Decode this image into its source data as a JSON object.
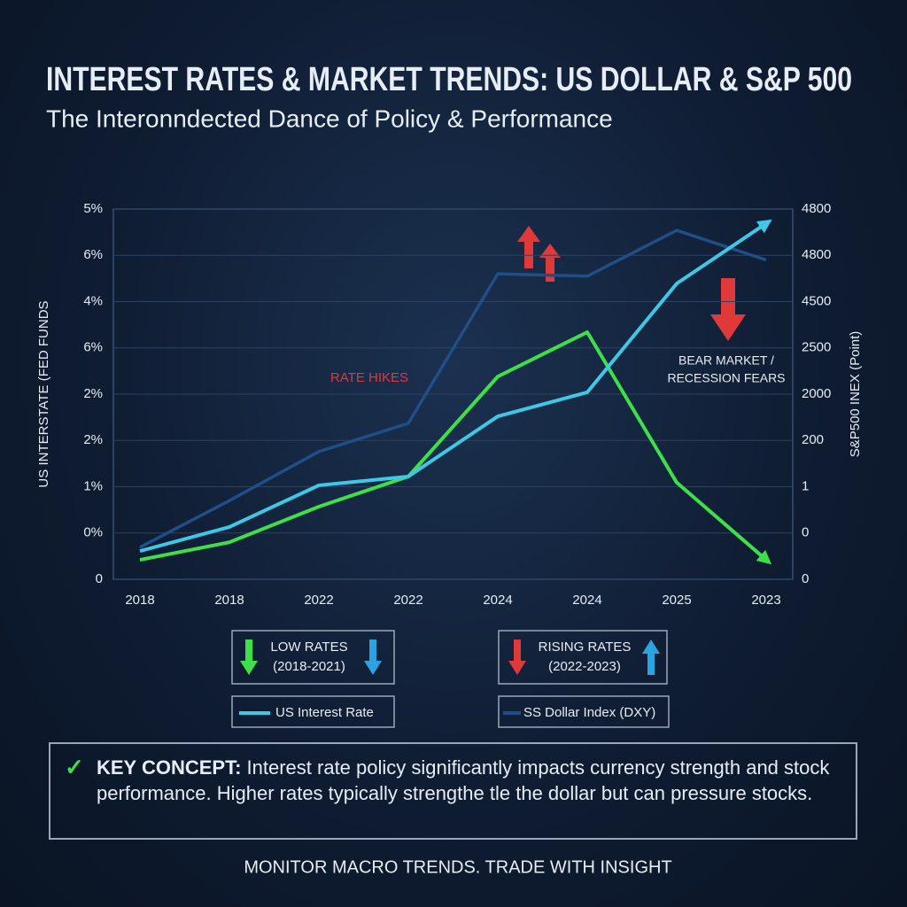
{
  "chart_data": {
    "type": "line",
    "title": "INTEREST RATES & MARKET TRENDS: US DOLLAR & S&P 500",
    "subtitle": "The Interonndected Dance of Policy & Performance",
    "y_label": "US INTERSTATE (FED FUNDS",
    "y2_label": "S&P500 INEX (Point)",
    "categories": [
      "2018",
      "2018",
      "2022",
      "2022",
      "2024",
      "2024",
      "2025",
      "2023"
    ],
    "ylim": [
      0,
      8
    ],
    "yticks": [
      0,
      {
        "value": 1,
        "label": "0%"
      },
      {
        "value": 2,
        "label": "1%"
      },
      {
        "value": 3,
        "label": "2%"
      },
      {
        "value": 4,
        "label": "2%"
      },
      {
        "value": 5,
        "label": "6%"
      },
      {
        "value": 6,
        "label": "4%"
      },
      {
        "value": 7,
        "label": "6%"
      },
      {
        "value": 8,
        "label": "5%"
      }
    ],
    "y2lim": [
      0,
      8
    ],
    "y2ticks": [
      0,
      {
        "value": 1,
        "label": "0"
      },
      {
        "value": 2,
        "label": "1"
      },
      {
        "value": 3,
        "label": "200"
      },
      {
        "value": 4,
        "label": "2000"
      },
      {
        "value": 5,
        "label": "2500"
      },
      {
        "value": 6,
        "label": "4500"
      },
      {
        "value": 7,
        "label": "4800"
      },
      {
        "value": 8,
        "label": "4800"
      }
    ],
    "grid": true,
    "series": [
      {
        "name": "SS Dollar Index (DXY)",
        "color": "#1f4f86",
        "values": [
          0.69,
          1.7,
          2.76,
          3.37,
          6.6,
          6.55,
          7.54,
          6.9
        ]
      },
      {
        "color": "#3ee04a",
        "values": [
          0.42,
          0.8,
          1.57,
          2.22,
          4.38,
          5.34,
          2.09,
          0.42
        ]
      },
      {
        "name": "US Interest Rate",
        "color": "#3ec8e6",
        "values": [
          0.61,
          1.13,
          2.03,
          2.22,
          3.52,
          4.04,
          6.39,
          7.69
        ]
      }
    ],
    "annotations": {
      "rate_hikes": "RATE HIKES",
      "bear_market": [
        "BEAR MARKET /",
        "RECESSION FEARS"
      ]
    },
    "legend_boxes": [
      [
        "LOW RATES",
        "(2018-2021)"
      ],
      [
        "RISING RATES",
        "(2022-2023)"
      ]
    ],
    "key_concept": {
      "label": "KEY CONCEPT:",
      "text": "Interest rate policy significantly impacts currency strength and stock performance. Higher rates typically strengthe tle the dollar but can pressure stocks."
    },
    "footer": "MONITOR MACRO TRENDS. TRADE WITH INSIGHT"
  }
}
